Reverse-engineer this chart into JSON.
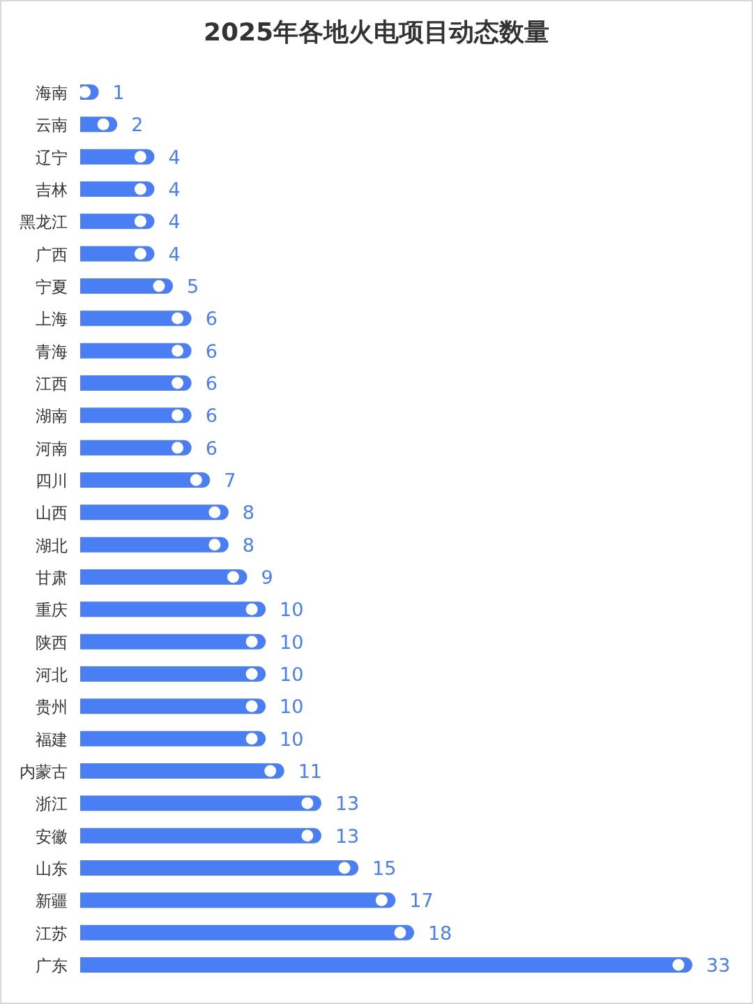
{
  "chart_data": {
    "type": "bar",
    "orientation": "horizontal",
    "title": "2025年各地火电项目动态数量",
    "categories": [
      "海南",
      "云南",
      "辽宁",
      "吉林",
      "黑龙江",
      "广西",
      "宁夏",
      "上海",
      "青海",
      "江西",
      "湖南",
      "河南",
      "四川",
      "山西",
      "湖北",
      "甘肃",
      "重庆",
      "陕西",
      "河北",
      "贵州",
      "福建",
      "内蒙古",
      "浙江",
      "安徽",
      "山东",
      "新疆",
      "江苏",
      "广东"
    ],
    "values": [
      1,
      2,
      4,
      4,
      4,
      4,
      5,
      6,
      6,
      6,
      6,
      6,
      7,
      8,
      8,
      9,
      10,
      10,
      10,
      10,
      10,
      11,
      13,
      13,
      15,
      17,
      18,
      33
    ],
    "color": "#4a7ef5",
    "data_labels": true
  }
}
